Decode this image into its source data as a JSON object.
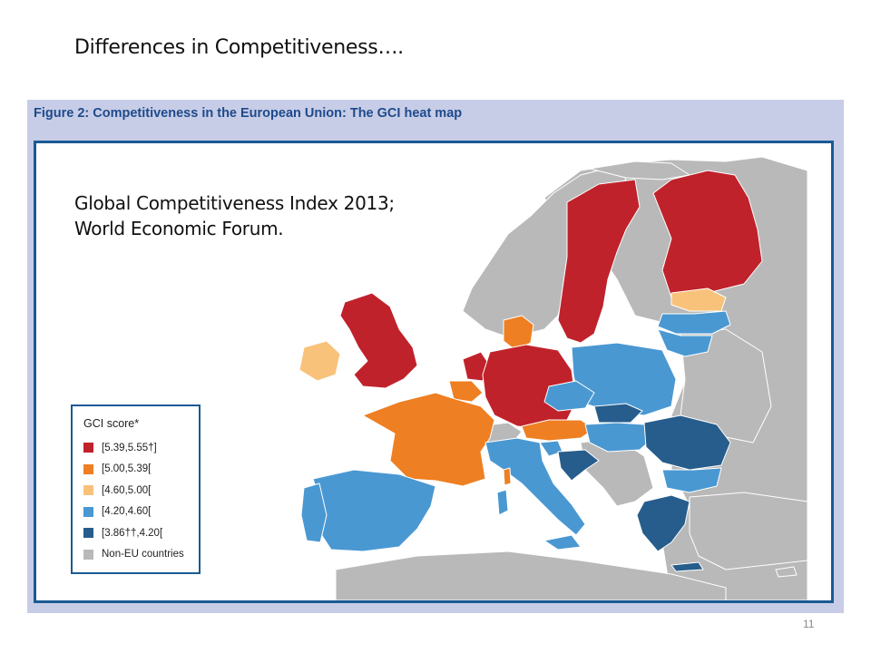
{
  "slide": {
    "title": "Differences in Competitiveness….",
    "page_number": "11"
  },
  "figure": {
    "caption": "Figure 2: Competitiveness in the European Union: The GCI heat map",
    "subtitle_line1": "Global Competitiveness Index 2013;",
    "subtitle_line2": "World Economic Forum."
  },
  "legend": {
    "title": "GCI score*",
    "items": [
      {
        "label": "[5.39,5.55†]",
        "color": "#c0222b",
        "key": "top"
      },
      {
        "label": "[5.00,5.39[",
        "color": "#ee7f22",
        "key": "upper"
      },
      {
        "label": "[4.60,5.00[",
        "color": "#f8c27a",
        "key": "middle"
      },
      {
        "label": "[4.20,4.60[",
        "color": "#4a98d2",
        "key": "lower"
      },
      {
        "label": "[3.86††,4.20[",
        "color": "#275d8c",
        "key": "bottom"
      },
      {
        "label": "Non-EU countries",
        "color": "#b9b9b9",
        "key": "non_eu"
      }
    ]
  },
  "map": {
    "sea_color": "#ffffff",
    "border_color": "#ffffff",
    "regions": [
      {
        "name": "Sweden",
        "class": "top"
      },
      {
        "name": "Finland",
        "class": "top"
      },
      {
        "name": "United Kingdom",
        "class": "top"
      },
      {
        "name": "Netherlands",
        "class": "top"
      },
      {
        "name": "Germany",
        "class": "top"
      },
      {
        "name": "Denmark",
        "class": "upper"
      },
      {
        "name": "France",
        "class": "upper"
      },
      {
        "name": "Belgium",
        "class": "upper"
      },
      {
        "name": "Austria",
        "class": "upper"
      },
      {
        "name": "Ireland",
        "class": "middle"
      },
      {
        "name": "Estonia",
        "class": "middle"
      },
      {
        "name": "Spain",
        "class": "lower"
      },
      {
        "name": "Portugal",
        "class": "lower"
      },
      {
        "name": "Italy",
        "class": "lower"
      },
      {
        "name": "Poland",
        "class": "lower"
      },
      {
        "name": "Czech Republic",
        "class": "lower"
      },
      {
        "name": "Latvia",
        "class": "lower"
      },
      {
        "name": "Lithuania",
        "class": "lower"
      },
      {
        "name": "Slovenia",
        "class": "lower"
      },
      {
        "name": "Hungary",
        "class": "lower"
      },
      {
        "name": "Bulgaria",
        "class": "lower"
      },
      {
        "name": "Slovakia",
        "class": "bottom"
      },
      {
        "name": "Romania",
        "class": "bottom"
      },
      {
        "name": "Greece",
        "class": "bottom"
      },
      {
        "name": "Croatia",
        "class": "bottom"
      },
      {
        "name": "Non-EU landmass",
        "class": "non_eu"
      }
    ]
  }
}
